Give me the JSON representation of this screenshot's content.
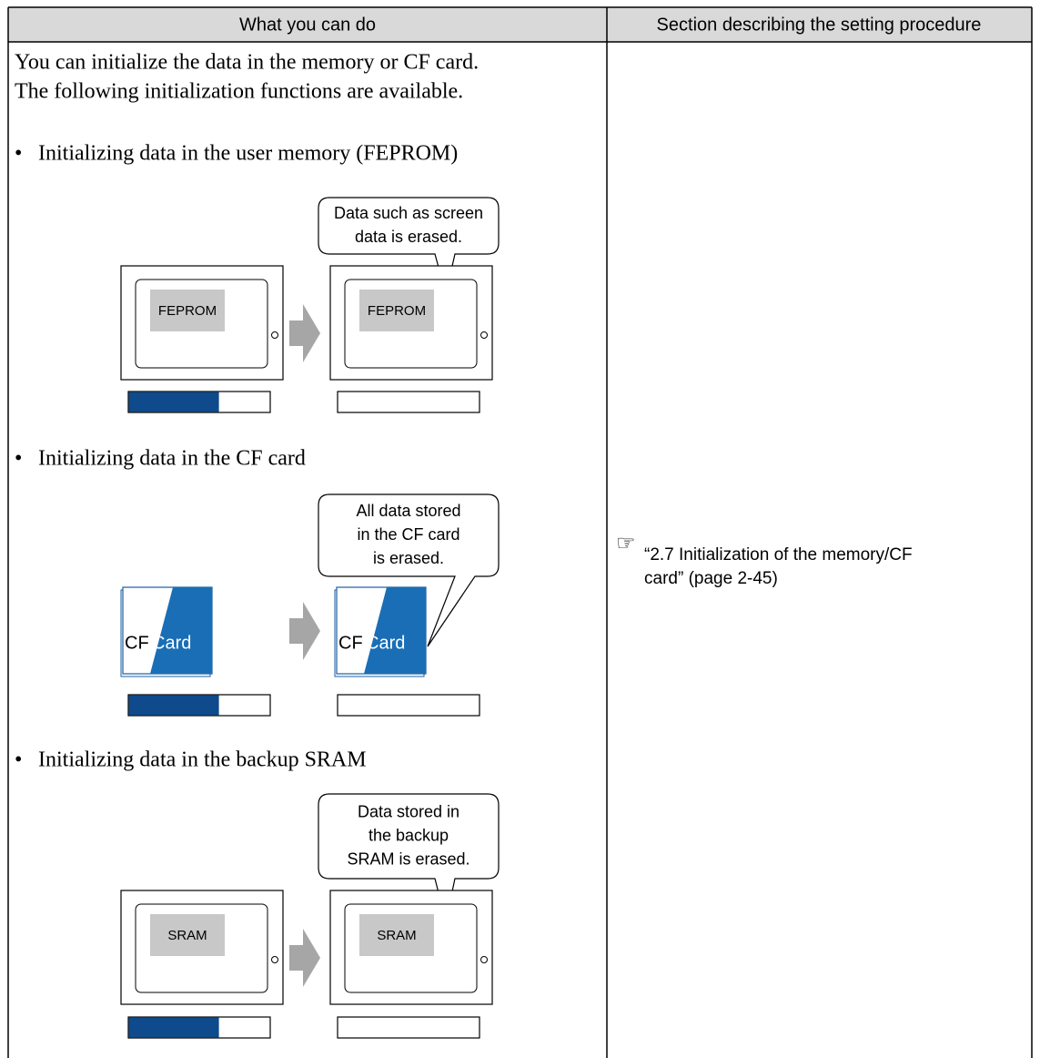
{
  "header": {
    "col1": "What you can do",
    "col2": "Section describing the setting procedure"
  },
  "intro": [
    "You can initialize the data in the memory or CF card.",
    "The following initialization functions are available."
  ],
  "bullet": "•",
  "items": [
    {
      "title": "Initializing data in the user memory (FEPROM)",
      "callout": [
        "Data such as screen",
        "data is erased."
      ],
      "screen_labels": [
        "FEPROM",
        "FEPROM"
      ]
    },
    {
      "title": "Initializing data in the CF card",
      "callout": [
        "All data stored",
        "in the CF card",
        "is erased."
      ],
      "card_labels": [
        [
          "CF",
          "Card"
        ],
        [
          "CF",
          "Card"
        ]
      ]
    },
    {
      "title": "Initializing data in the backup SRAM",
      "callout": [
        "Data stored in",
        "the backup",
        "SRAM is erased."
      ],
      "screen_labels": [
        "SRAM",
        "SRAM"
      ]
    }
  ],
  "reference": {
    "icon": "☞",
    "lines": [
      "“2.7 Initialization of the memory/CF",
      "card” (page 2-45)"
    ]
  }
}
